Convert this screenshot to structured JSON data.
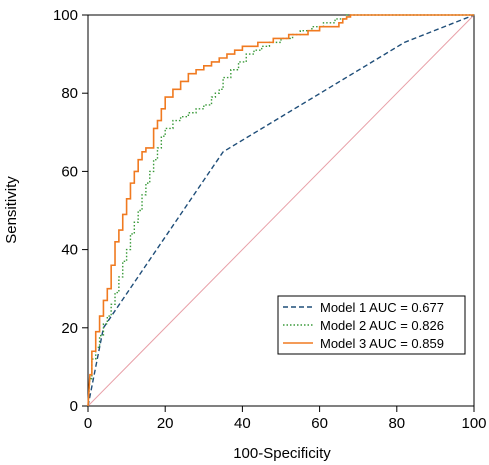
{
  "chart_data": {
    "type": "line",
    "title": "",
    "xlabel": "100-Specificity",
    "ylabel": "Sensitivity",
    "xlim": [
      0,
      100
    ],
    "ylim": [
      0,
      100
    ],
    "xticks": [
      0,
      20,
      40,
      60,
      80,
      100
    ],
    "yticks": [
      0,
      20,
      40,
      60,
      80,
      100
    ],
    "grid": false,
    "legend_position": "bottom-right",
    "reference_line": {
      "x": [
        0,
        100
      ],
      "y": [
        0,
        100
      ],
      "color": "#e8a0a8"
    },
    "series": [
      {
        "name": "Model 1 AUC = 0.677",
        "style": "dashed",
        "color": "#1f4e79",
        "x": [
          0,
          4,
          35,
          82,
          100
        ],
        "y": [
          0,
          20,
          65,
          93,
          100
        ]
      },
      {
        "name": "Model 2 AUC = 0.826",
        "style": "dotted",
        "color": "#3a9a3a",
        "x": [
          0,
          0.5,
          1,
          1,
          2,
          2,
          3,
          3,
          4,
          4,
          5,
          5,
          6,
          6,
          7,
          7,
          8,
          8,
          9,
          9,
          10,
          10,
          11,
          11,
          12,
          12,
          13,
          13,
          14,
          14,
          15,
          15,
          16,
          16,
          17,
          17,
          18,
          18,
          19,
          19,
          20,
          20,
          22,
          22,
          24,
          24,
          26,
          26,
          28,
          28,
          30,
          30,
          32,
          32,
          33,
          33,
          34,
          34,
          35,
          35,
          37,
          37,
          39,
          39,
          41,
          41,
          43,
          43,
          45,
          45,
          47,
          47,
          50,
          50,
          53,
          53,
          55,
          55,
          58,
          58,
          61,
          61,
          64,
          64,
          67,
          67,
          70,
          75,
          100
        ],
        "y": [
          0,
          7,
          7,
          12,
          12,
          15,
          15,
          18,
          18,
          21,
          21,
          23,
          23,
          26,
          26,
          29,
          29,
          33,
          33,
          37,
          37,
          40,
          40,
          44,
          44,
          47,
          47,
          50,
          50,
          54,
          54,
          57,
          57,
          60,
          60,
          63,
          63,
          66,
          66,
          69,
          69,
          71,
          71,
          73,
          73,
          74,
          74,
          75,
          75,
          76,
          76,
          77,
          77,
          79,
          79,
          80,
          80,
          81,
          81,
          84,
          84,
          86,
          86,
          88,
          88,
          90,
          90,
          91,
          91,
          92,
          92,
          93,
          93,
          94,
          94,
          95,
          95,
          96,
          96,
          97,
          97,
          98,
          98,
          99,
          99,
          100,
          100,
          100,
          100
        ]
      },
      {
        "name": "Model 3 AUC = 0.859",
        "style": "solid",
        "color": "#f07a20",
        "x": [
          0,
          0.5,
          1,
          1,
          2,
          2,
          3,
          3,
          4,
          4,
          5,
          5,
          6,
          6,
          7,
          7,
          8,
          8,
          9,
          9,
          10,
          10,
          11,
          11,
          12,
          12,
          13,
          13,
          14,
          14,
          15,
          15,
          17,
          17,
          18,
          18,
          19,
          19,
          20,
          20,
          22,
          22,
          24,
          24,
          26,
          26,
          28,
          28,
          30,
          30,
          32,
          32,
          34,
          34,
          36,
          36,
          38,
          38,
          40,
          40,
          44,
          44,
          48,
          48,
          52,
          52,
          57,
          57,
          60,
          60,
          65,
          65,
          66,
          66,
          67,
          67,
          68,
          68,
          100
        ],
        "y": [
          0,
          8,
          8,
          14,
          14,
          19,
          19,
          23,
          23,
          27,
          27,
          30,
          30,
          36,
          36,
          42,
          42,
          45,
          45,
          49,
          49,
          53,
          53,
          57,
          57,
          60,
          60,
          63,
          63,
          65,
          65,
          66,
          66,
          71,
          71,
          73,
          73,
          76,
          76,
          79,
          79,
          81,
          81,
          83,
          83,
          85,
          85,
          86,
          86,
          87,
          87,
          88,
          88,
          89,
          89,
          90,
          90,
          91,
          91,
          92,
          92,
          93,
          93,
          94,
          94,
          95,
          95,
          96,
          96,
          97,
          97,
          98,
          98,
          99,
          99,
          99.5,
          99.5,
          100,
          100
        ]
      }
    ]
  }
}
